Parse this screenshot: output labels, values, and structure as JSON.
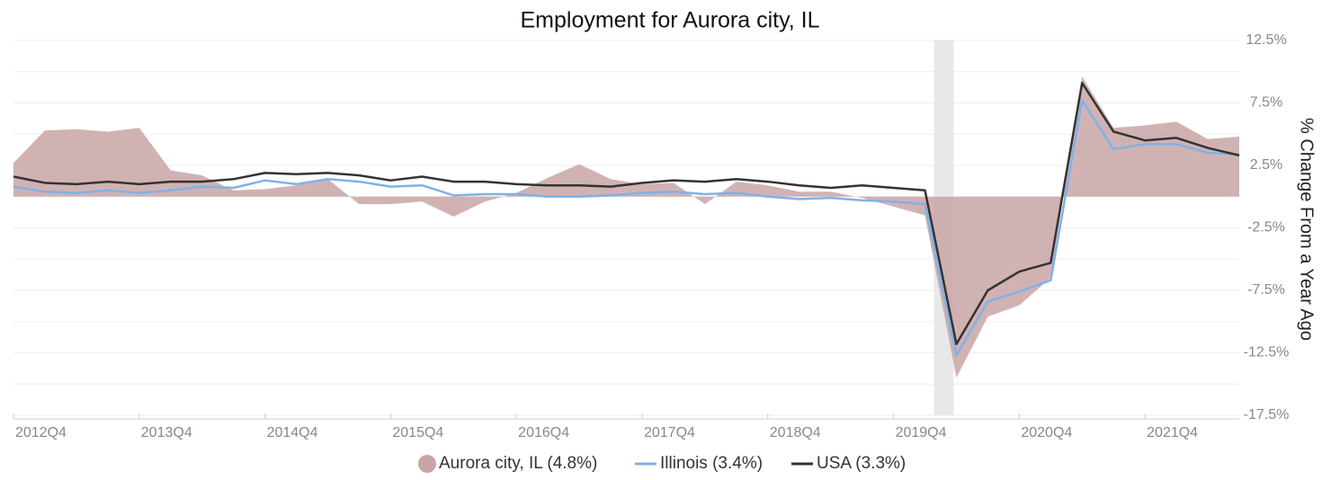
{
  "chart_data": {
    "type": "area_line",
    "title": "Employment for Aurora city, IL",
    "y_label": "% Change From a Year Ago",
    "categories": [
      "2012Q4",
      null,
      null,
      null,
      "2013Q4",
      null,
      null,
      null,
      "2014Q4",
      null,
      null,
      null,
      "2015Q4",
      null,
      null,
      null,
      "2016Q4",
      null,
      null,
      null,
      "2017Q4",
      null,
      null,
      null,
      "2018Q4",
      null,
      null,
      null,
      "2019Q4",
      null,
      null,
      null,
      "2020Q4",
      null,
      null,
      null,
      "2021Q4",
      null,
      null,
      null
    ],
    "shaded_period": {
      "start": 29,
      "end": 30
    },
    "series": [
      {
        "name": "Aurora city, IL (4.8%)",
        "kind": "area",
        "color": "#c9a5a6",
        "values": [
          2.7,
          5.3,
          5.4,
          5.2,
          5.5,
          2.1,
          1.7,
          0.5,
          0.6,
          0.9,
          1.4,
          -0.6,
          -0.6,
          -0.4,
          -1.6,
          -0.4,
          0.3,
          1.5,
          2.6,
          1.4,
          1.0,
          1.1,
          -0.6,
          1.2,
          0.9,
          0.4,
          0.4,
          -0.1,
          -0.8,
          -1.5,
          -14.5,
          -9.6,
          -8.7,
          -6.5,
          9.6,
          5.5,
          5.7,
          6.0,
          4.6,
          4.8
        ]
      },
      {
        "name": "Illinois (3.4%)",
        "kind": "line",
        "color": "#7fb2e5",
        "values": [
          0.8,
          0.4,
          0.3,
          0.5,
          0.3,
          0.5,
          0.8,
          0.7,
          1.3,
          1.0,
          1.4,
          1.2,
          0.8,
          0.9,
          0.1,
          0.2,
          0.2,
          0.0,
          0.0,
          0.1,
          0.3,
          0.4,
          0.2,
          0.3,
          0.0,
          -0.2,
          -0.1,
          -0.3,
          -0.4,
          -0.6,
          -12.7,
          -8.4,
          -7.6,
          -6.7,
          7.7,
          3.8,
          4.2,
          4.2,
          3.5,
          3.4
        ]
      },
      {
        "name": "USA (3.3%)",
        "kind": "line",
        "color": "#333333",
        "values": [
          1.6,
          1.1,
          1.0,
          1.2,
          1.0,
          1.2,
          1.2,
          1.4,
          1.9,
          1.8,
          1.9,
          1.7,
          1.3,
          1.6,
          1.2,
          1.2,
          1.0,
          0.9,
          0.9,
          0.8,
          1.1,
          1.3,
          1.2,
          1.4,
          1.2,
          0.9,
          0.7,
          0.9,
          0.7,
          0.5,
          -11.8,
          -7.5,
          -6.0,
          -5.3,
          9.1,
          5.2,
          4.5,
          4.7,
          3.9,
          3.3
        ]
      }
    ],
    "ylim": [
      -17.5,
      12.5
    ],
    "yticks": [
      {
        "value": 12.5,
        "label": "12.5%"
      },
      {
        "value": 7.5,
        "label": "7.5%"
      },
      {
        "value": 2.5,
        "label": "2.5%"
      },
      {
        "value": -2.5,
        "label": "-2.5%"
      },
      {
        "value": -7.5,
        "label": "-7.5%"
      },
      {
        "value": -12.5,
        "label": "-12.5%"
      },
      {
        "value": -17.5,
        "label": "-17.5%"
      }
    ],
    "minor_yticks": [
      10,
      5,
      0,
      -5,
      -10,
      -15
    ],
    "grid": true
  }
}
